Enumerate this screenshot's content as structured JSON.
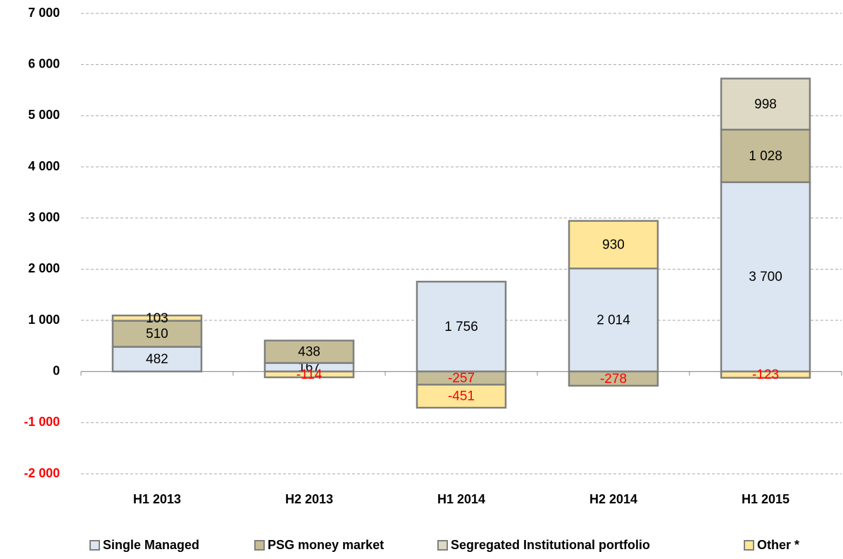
{
  "chart_data": {
    "type": "stacked_bar",
    "categories": [
      "H1 2013",
      "H2 2013",
      "H1 2014",
      "H2 2014",
      "H1 2015"
    ],
    "series": [
      {
        "name": "Single Managed",
        "color": "#dce6f2",
        "values": [
          482,
          167,
          1756,
          2014,
          3700
        ],
        "value_labels": [
          "482",
          "167",
          "1 756",
          "2 014",
          "3 700"
        ]
      },
      {
        "name": "PSG money market",
        "color": "#c4bd97",
        "values": [
          510,
          438,
          -257,
          -278,
          1028
        ],
        "value_labels": [
          "510",
          "438",
          "-257",
          "-278",
          "1 028"
        ]
      },
      {
        "name": "Segregated Institutional portfolio",
        "color": "#ddd9c4",
        "values": [
          null,
          null,
          null,
          null,
          998
        ],
        "value_labels": [
          null,
          null,
          null,
          null,
          "998"
        ]
      },
      {
        "name": "Other *",
        "color": "#ffe699",
        "values": [
          103,
          -114,
          -451,
          930,
          -123
        ],
        "value_labels": [
          "103",
          "-114",
          "-451",
          "930",
          "-123"
        ]
      }
    ],
    "ylim": [
      -2000,
      7000
    ],
    "yticks": [
      {
        "value": -2000,
        "label": "-2 000"
      },
      {
        "value": -1000,
        "label": "-1 000"
      },
      0,
      {
        "value": 1000,
        "label": "1 000"
      },
      {
        "value": 2000,
        "label": "2 000"
      },
      {
        "value": 3000,
        "label": "3 000"
      },
      {
        "value": 4000,
        "label": "4 000"
      },
      {
        "value": 5000,
        "label": "5 000"
      },
      {
        "value": 6000,
        "label": "6 000"
      },
      {
        "value": 7000,
        "label": "7 000"
      }
    ],
    "grid": true,
    "negative_label_color": "#ff0000",
    "legend": "bottom"
  }
}
